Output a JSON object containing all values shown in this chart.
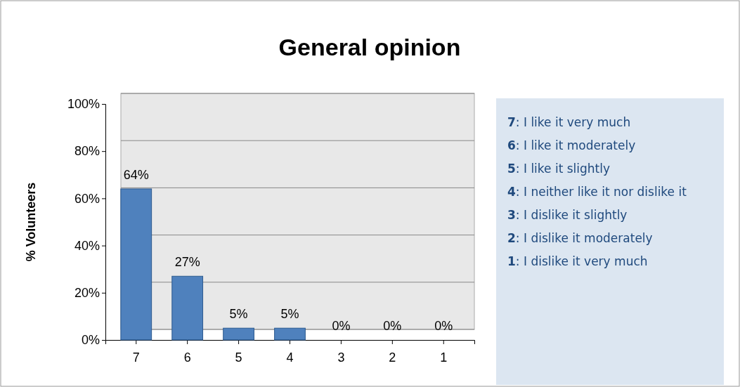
{
  "chart_data": {
    "type": "bar",
    "title": "General opinion",
    "ylabel": "% Volunteers",
    "categories": [
      "7",
      "6",
      "5",
      "4",
      "3",
      "2",
      "1"
    ],
    "values": [
      64,
      27,
      5,
      5,
      0,
      0,
      0
    ],
    "value_labels": [
      "64%",
      "27%",
      "5%",
      "5%",
      "0%",
      "0%",
      "0%"
    ],
    "color": "#4f81bd",
    "ylim": [
      0,
      100
    ],
    "yticks": [
      {
        "value": 0,
        "label": "0%"
      },
      {
        "value": 20,
        "label": "20%"
      },
      {
        "value": 40,
        "label": "40%"
      },
      {
        "value": 60,
        "label": "60%"
      },
      {
        "value": 80,
        "label": "80%"
      },
      {
        "value": 100,
        "label": "100%"
      }
    ],
    "grid": "y",
    "annotations": [
      "7: I like it very much",
      "6: I like it moderately",
      "5: I like it slightly",
      "4: I neither like it nor dislike it",
      "3: I dislike it slightly",
      "2: I dislike it moderately",
      "1: I dislike it very much"
    ]
  }
}
